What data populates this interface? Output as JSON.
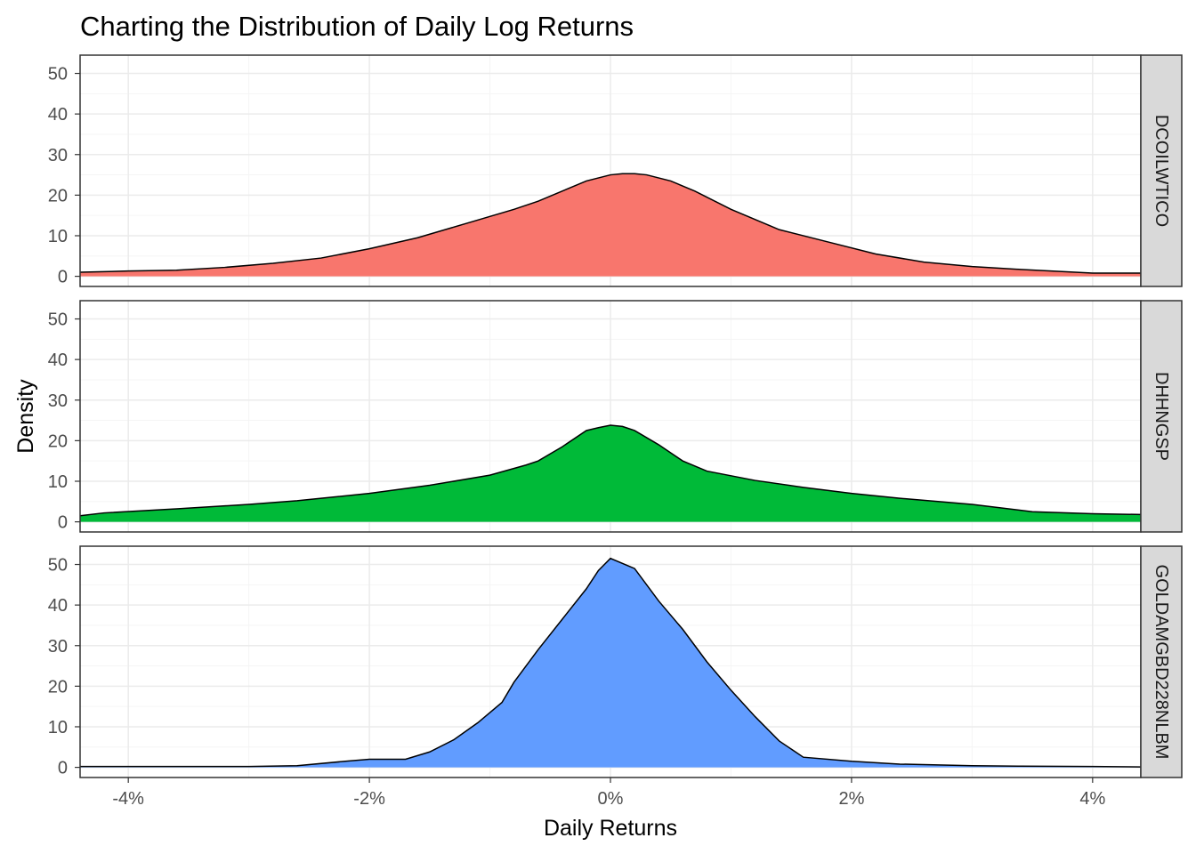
{
  "chart_data": {
    "type": "area",
    "title": "Charting the Distribution of Daily Log Returns",
    "xlabel": "Daily Returns",
    "ylabel": "Density",
    "xlim": [
      -4.4,
      4.4
    ],
    "ylim": [
      -2.5,
      54.5
    ],
    "x_ticks": [
      -4,
      -2,
      0,
      2,
      4
    ],
    "x_tick_labels": [
      "-4%",
      "-2%",
      "0%",
      "2%",
      "4%"
    ],
    "y_ticks": [
      0,
      10,
      20,
      30,
      40,
      50
    ],
    "y_tick_labels": [
      "0",
      "10",
      "20",
      "30",
      "40",
      "50"
    ],
    "grid": true,
    "facet_layout": "rows",
    "series": [
      {
        "name": "DCOILWTICO",
        "color": "#F8766D",
        "x": [
          -4.4,
          -4.0,
          -3.6,
          -3.2,
          -2.8,
          -2.4,
          -2.0,
          -1.6,
          -1.2,
          -0.8,
          -0.6,
          -0.4,
          -0.2,
          0.0,
          0.1,
          0.2,
          0.3,
          0.5,
          0.7,
          1.0,
          1.4,
          1.8,
          2.2,
          2.6,
          3.0,
          3.4,
          3.8,
          4.0,
          4.4
        ],
        "y": [
          1.0,
          1.3,
          1.5,
          2.2,
          3.2,
          4.5,
          6.8,
          9.5,
          13.0,
          16.5,
          18.5,
          21.0,
          23.5,
          25.0,
          25.3,
          25.3,
          25.0,
          23.5,
          21.0,
          16.5,
          11.5,
          8.5,
          5.5,
          3.5,
          2.4,
          1.7,
          1.1,
          0.8,
          0.8
        ]
      },
      {
        "name": "DHHNGSP",
        "color": "#00BA38",
        "x": [
          -4.4,
          -4.2,
          -3.6,
          -3.0,
          -2.6,
          -2.4,
          -2.0,
          -1.5,
          -1.0,
          -0.7,
          -0.6,
          -0.4,
          -0.2,
          -0.1,
          0.0,
          0.1,
          0.2,
          0.4,
          0.6,
          0.8,
          1.2,
          1.6,
          2.0,
          2.4,
          3.0,
          3.5,
          4.0,
          4.4
        ],
        "y": [
          1.5,
          2.2,
          3.2,
          4.3,
          5.2,
          5.8,
          7.0,
          9.0,
          11.5,
          14.0,
          15.0,
          18.5,
          22.5,
          23.2,
          23.8,
          23.5,
          22.5,
          19.0,
          15.0,
          12.5,
          10.2,
          8.5,
          7.0,
          5.8,
          4.3,
          2.5,
          2.0,
          1.8
        ]
      },
      {
        "name": "GOLDAMGBD228NLBM",
        "color": "#619CFF",
        "x": [
          -4.4,
          -3.0,
          -2.6,
          -2.2,
          -2.0,
          -1.7,
          -1.5,
          -1.3,
          -1.1,
          -0.9,
          -0.8,
          -0.6,
          -0.4,
          -0.2,
          -0.1,
          0.0,
          0.2,
          0.4,
          0.6,
          0.8,
          1.0,
          1.2,
          1.4,
          1.6,
          2.0,
          2.4,
          3.0,
          3.4,
          4.0,
          4.4
        ],
        "y": [
          0.2,
          0.2,
          0.4,
          1.5,
          2.0,
          2.0,
          3.8,
          6.8,
          11.0,
          16.0,
          21.0,
          29.0,
          36.5,
          44.0,
          48.5,
          51.5,
          49.0,
          41.0,
          34.0,
          26.0,
          19.0,
          12.5,
          6.5,
          2.5,
          1.5,
          0.8,
          0.4,
          0.3,
          0.2,
          0.1
        ]
      }
    ]
  }
}
